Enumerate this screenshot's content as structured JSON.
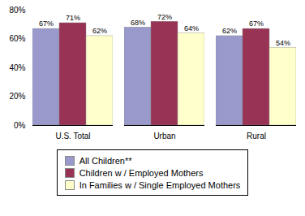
{
  "chart_data": {
    "type": "bar",
    "categories": [
      "U.S. Total",
      "Urban",
      "Rural"
    ],
    "series": [
      {
        "name": "All Children**",
        "color": "#9999CC",
        "values": [
          67,
          68,
          62
        ],
        "value_labels": [
          "67%",
          "68%",
          "62%"
        ]
      },
      {
        "name": "Children w / Employed Mothers",
        "color": "#993355",
        "values": [
          71,
          72,
          67
        ],
        "value_labels": [
          "71%",
          "72%",
          "67%"
        ]
      },
      {
        "name": "In Families w / Single Employed Mothers",
        "color": "#FFFFCC",
        "values": [
          62,
          64,
          54
        ],
        "value_labels": [
          "62%",
          "64%",
          "54%"
        ]
      }
    ],
    "ylim": [
      0,
      80
    ],
    "yticks": [
      {
        "value": 0,
        "label": "0%"
      },
      {
        "value": 20,
        "label": "20%"
      },
      {
        "value": 40,
        "label": "40%"
      },
      {
        "value": 60,
        "label": "60%"
      },
      {
        "value": 80,
        "label": "80%"
      }
    ],
    "grid": false,
    "data_labels": true,
    "legend": "bottom"
  }
}
